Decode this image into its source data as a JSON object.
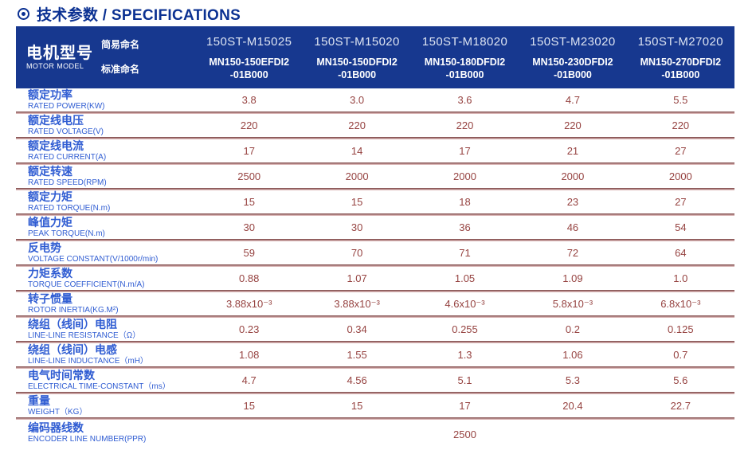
{
  "page": {
    "title": "技术参数 / SPECIFICATIONS"
  },
  "colors": {
    "header_bg": "#17388f",
    "title_text": "#0b3192",
    "label_text": "#2f5cd2",
    "value_text": "#964341",
    "separator_dark": "#8a5757",
    "separator_light": "#d6b1b1"
  },
  "table": {
    "model_header": {
      "title_zh": "电机型号",
      "title_en": "MOTOR MODEL",
      "simple_label": "简易命名",
      "standard_label": "标准命名"
    },
    "columns": [
      {
        "simple": "150ST-M15025",
        "standard_line1": "MN150-150EFDI2",
        "standard_line2": "-01B000"
      },
      {
        "simple": "150ST-M15020",
        "standard_line1": "MN150-150DFDI2",
        "standard_line2": "-01B000"
      },
      {
        "simple": "150ST-M18020",
        "standard_line1": "MN150-180DFDI2",
        "standard_line2": "-01B000"
      },
      {
        "simple": "150ST-M23020",
        "standard_line1": "MN150-230DFDI2",
        "standard_line2": "-01B000"
      },
      {
        "simple": "150ST-M27020",
        "standard_line1": "MN150-270DFDI2",
        "standard_line2": "-01B000"
      }
    ],
    "rows": [
      {
        "zh": "额定功率",
        "en": "RATED POWER(KW)",
        "values": [
          "3.8",
          "3.0",
          "3.6",
          "4.7",
          "5.5"
        ]
      },
      {
        "zh": "额定线电压",
        "en": "RATED VOLTAGE(V)",
        "values": [
          "220",
          "220",
          "220",
          "220",
          "220"
        ]
      },
      {
        "zh": "额定线电流",
        "en": "RATED CURRENT(A)",
        "values": [
          "17",
          "14",
          "17",
          "21",
          "27"
        ]
      },
      {
        "zh": "额定转速",
        "en": "RATED SPEED(RPM)",
        "values": [
          "2500",
          "2000",
          "2000",
          "2000",
          "2000"
        ]
      },
      {
        "zh": "额定力矩",
        "en": "RATED TORQUE(N.m)",
        "values": [
          "15",
          "15",
          "18",
          "23",
          "27"
        ]
      },
      {
        "zh": "峰值力矩",
        "en": "PEAK TORQUE(N.m)",
        "values": [
          "30",
          "30",
          "36",
          "46",
          "54"
        ]
      },
      {
        "zh": "反电势",
        "en": "VOLTAGE CONSTANT(V/1000r/min)",
        "values": [
          "59",
          "70",
          "71",
          "72",
          "64"
        ]
      },
      {
        "zh": "力矩系数",
        "en": "TORQUE COEFFICIENT(N.m/A)",
        "values": [
          "0.88",
          "1.07",
          "1.05",
          "1.09",
          "1.0"
        ]
      },
      {
        "zh": "转子惯量",
        "en": "ROTOR INERTIA(KG.M²)",
        "values": [
          "3.88x10⁻³",
          "3.88x10⁻³",
          "4.6x10⁻³",
          "5.8x10⁻³",
          "6.8x10⁻³"
        ]
      },
      {
        "zh": "绕组（线间）电阻",
        "en": "LINE-LINE RESISTANCE（Ω）",
        "values": [
          "0.23",
          "0.34",
          "0.255",
          "0.2",
          "0.125"
        ]
      },
      {
        "zh": "绕组（线间）电感",
        "en": "LINE-LINE INDUCTANCE（mH）",
        "values": [
          "1.08",
          "1.55",
          "1.3",
          "1.06",
          "0.7"
        ]
      },
      {
        "zh": "电气时间常数",
        "en": "ELECTRICAL TIME-CONSTANT（ms）",
        "values": [
          "4.7",
          "4.56",
          "5.1",
          "5.3",
          "5.6"
        ]
      },
      {
        "zh": "重量",
        "en": "WEIGHT（KG）",
        "values": [
          "15",
          "15",
          "17",
          "20.4",
          "22.7"
        ]
      },
      {
        "zh": "编码器线数",
        "en": "ENCODER LINE NUMBER(PPR)",
        "span_value": "2500"
      }
    ]
  }
}
